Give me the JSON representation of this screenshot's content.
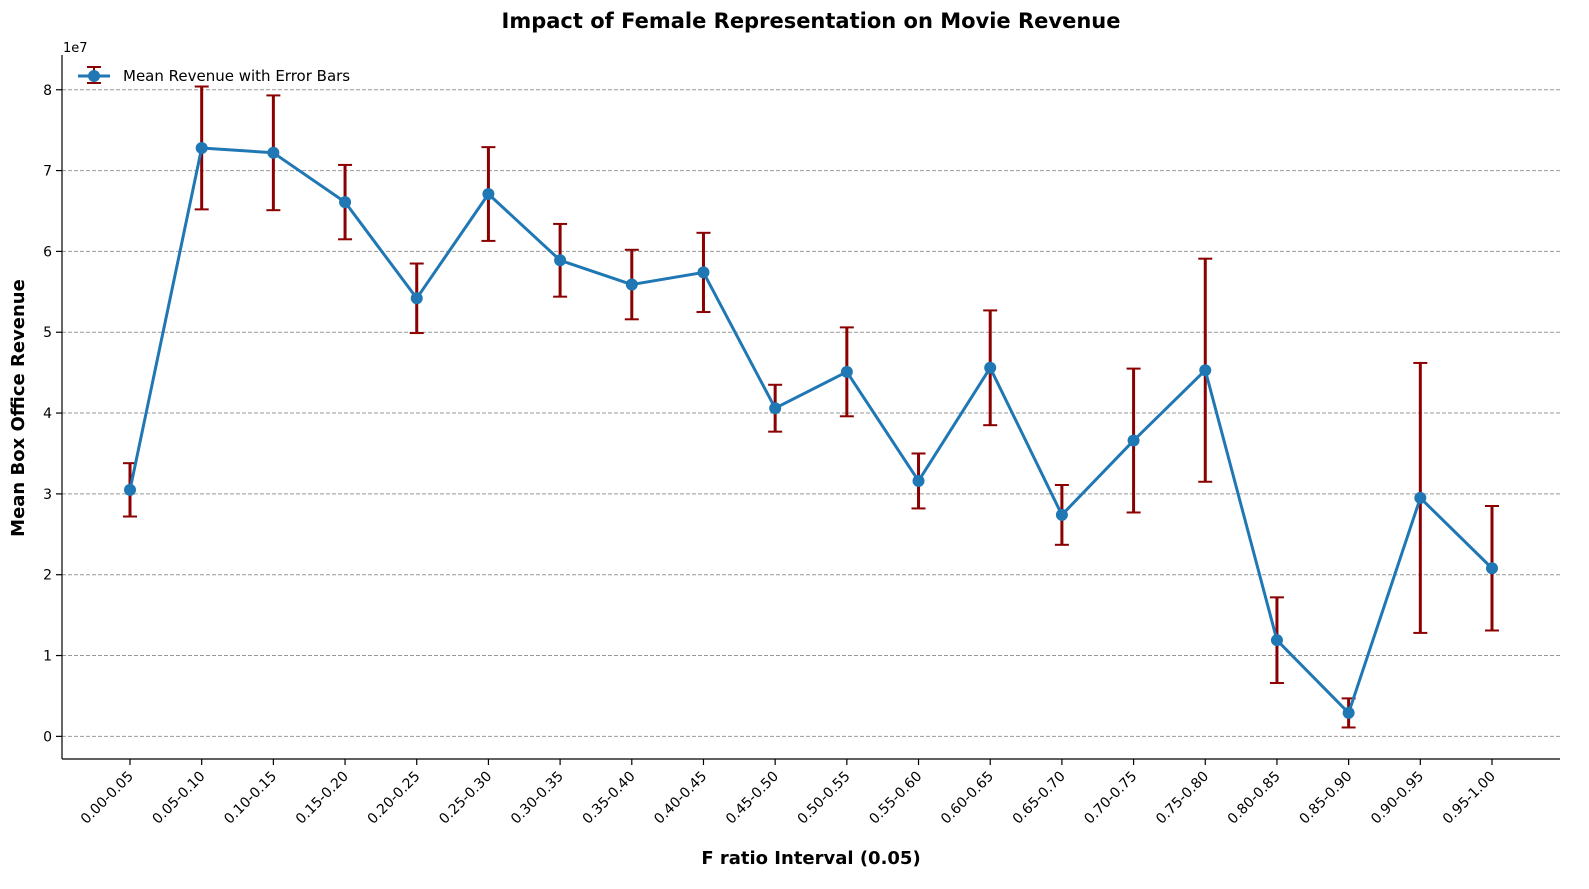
{
  "chart_data": {
    "type": "line",
    "title": "Impact of Female Representation on Movie Revenue",
    "xlabel": "F ratio Interval (0.05)",
    "ylabel": "Mean Box Office Revenue",
    "y_multiplier_label": "1e7",
    "y_unit_scale": 10000000,
    "ylim": [
      -2800000,
      84300000
    ],
    "yticks": [
      0,
      10000000,
      20000000,
      30000000,
      40000000,
      50000000,
      60000000,
      70000000,
      80000000
    ],
    "ytick_labels": [
      "0",
      "1",
      "2",
      "3",
      "4",
      "5",
      "6",
      "7",
      "8"
    ],
    "grid": "y-dashed",
    "legend": {
      "label": "Mean Revenue with Error Bars",
      "position": "top-left"
    },
    "categories": [
      "0.00-0.05",
      "0.05-0.10",
      "0.10-0.15",
      "0.15-0.20",
      "0.20-0.25",
      "0.25-0.30",
      "0.30-0.35",
      "0.35-0.40",
      "0.40-0.45",
      "0.45-0.50",
      "0.50-0.55",
      "0.55-0.60",
      "0.60-0.65",
      "0.65-0.70",
      "0.70-0.75",
      "0.75-0.80",
      "0.80-0.85",
      "0.85-0.90",
      "0.90-0.95",
      "0.95-1.00"
    ],
    "series": [
      {
        "name": "Mean Revenue with Error Bars",
        "values": [
          30500000,
          72800000,
          72200000,
          66100000,
          54200000,
          67100000,
          58900000,
          55900000,
          57400000,
          40600000,
          45100000,
          31600000,
          45600000,
          27400000,
          36600000,
          45300000,
          11900000,
          2900000,
          29500000,
          20800000
        ],
        "errors": [
          3300000,
          7600000,
          7100000,
          4600000,
          4300000,
          5800000,
          4500000,
          4300000,
          4900000,
          2900000,
          5500000,
          3400000,
          7100000,
          3700000,
          8900000,
          13800000,
          5300000,
          1800000,
          16700000,
          7700000
        ]
      }
    ],
    "colors": {
      "line": "#1f77b4",
      "error_bars": "#8b0000",
      "grid": "#999999",
      "axes": "#000000"
    }
  }
}
